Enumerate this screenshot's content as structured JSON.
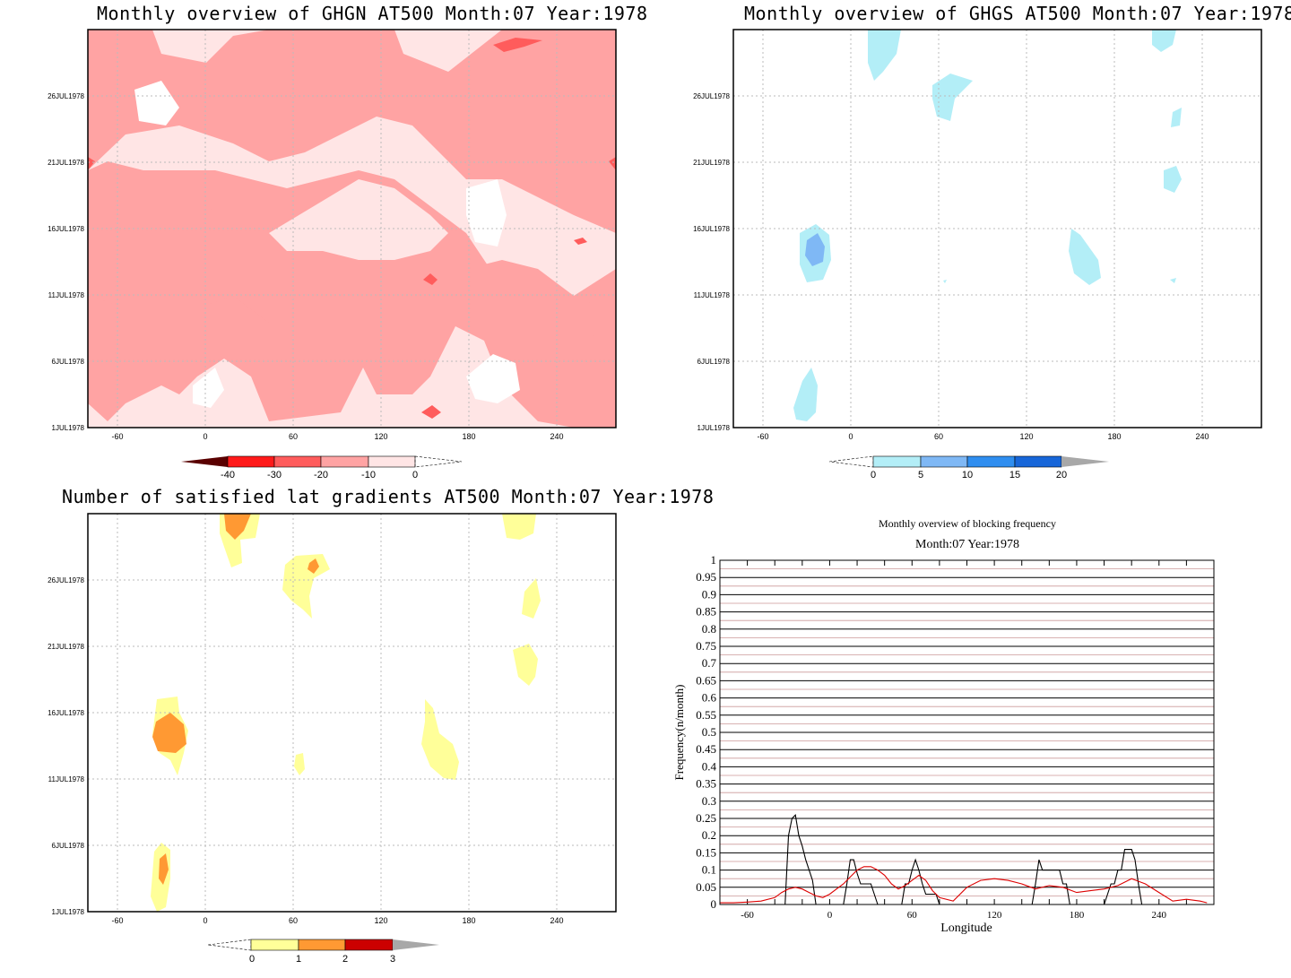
{
  "panels": {
    "ghgn": {
      "title": "Monthly overview of GHGN AT500 Month:07 Year:1978",
      "colorbar_labels": [
        "-40",
        "-30",
        "-20",
        "-10",
        "0"
      ],
      "colorbar_colors": [
        "#5a0000",
        "#ff1a1a",
        "#ff5c5c",
        "#ffa3a3",
        "#ffe5e5"
      ]
    },
    "ghgs": {
      "title": "Monthly overview of GHGS AT500 Month:07 Year:1978",
      "colorbar_labels": [
        "0",
        "5",
        "10",
        "15",
        "20"
      ],
      "colorbar_colors": [
        "#b3eef7",
        "#7fb8f5",
        "#2f8ef0",
        "#1766d9"
      ]
    },
    "lat": {
      "title": "Number of satisfied lat gradients AT500 Month:07 Year:1978",
      "colorbar_labels": [
        "0",
        "1",
        "2",
        "3"
      ],
      "colorbar_colors": [
        "#ffff99",
        "#ff9933",
        "#cc0000"
      ]
    },
    "freq": {
      "title": "Monthly overview of blocking frequency",
      "subtitle": "Month:07 Year:1978"
    }
  },
  "map_axes": {
    "x_ticks": [
      "-60",
      "0",
      "60",
      "120",
      "180",
      "240"
    ],
    "y_ticks": [
      "1JUL1978",
      "6JUL1978",
      "11JUL1978",
      "16JUL1978",
      "21JUL1978",
      "26JUL1978"
    ]
  },
  "chart_data": [
    {
      "type": "heatmap",
      "title": "Monthly overview of GHGN AT500 Month:07 Year:1978",
      "x_range": [
        -80,
        280
      ],
      "x_ticks": [
        -60,
        0,
        60,
        120,
        180,
        240
      ],
      "y_ticks": [
        "1JUL1978",
        "6JUL1978",
        "11JUL1978",
        "16JUL1978",
        "21JUL1978",
        "26JUL1978"
      ],
      "color_levels": [
        -40,
        -30,
        -20,
        -10,
        0
      ],
      "colors": [
        "#5a0000",
        "#ff1a1a",
        "#ff5c5c",
        "#ffa3a3",
        "#ffe5e5"
      ]
    },
    {
      "type": "heatmap",
      "title": "Monthly overview of GHGS AT500 Month:07 Year:1978",
      "x_range": [
        -80,
        280
      ],
      "x_ticks": [
        -60,
        0,
        60,
        120,
        180,
        240
      ],
      "y_ticks": [
        "1JUL1978",
        "6JUL1978",
        "11JUL1978",
        "16JUL1978",
        "21JUL1978",
        "26JUL1978"
      ],
      "color_levels": [
        0,
        5,
        10,
        15,
        20
      ],
      "colors": [
        "#b3eef7",
        "#7fb8f5",
        "#2f8ef0",
        "#1766d9"
      ]
    },
    {
      "type": "heatmap",
      "title": "Number of satisfied lat gradients AT500 Month:07 Year:1978",
      "x_range": [
        -80,
        280
      ],
      "x_ticks": [
        -60,
        0,
        60,
        120,
        180,
        240
      ],
      "y_ticks": [
        "1JUL1978",
        "6JUL1978",
        "11JUL1978",
        "16JUL1978",
        "21JUL1978",
        "26JUL1978"
      ],
      "color_levels": [
        0,
        1,
        2,
        3
      ],
      "colors": [
        "#ffff99",
        "#ff9933",
        "#cc0000"
      ]
    },
    {
      "type": "line",
      "title": "Monthly overview of blocking frequency",
      "subtitle": "Month:07 Year:1978",
      "xlabel": "Longitude",
      "ylabel": "Frequency(n/month)",
      "xlim": [
        -80,
        280
      ],
      "ylim": [
        0,
        1
      ],
      "x_ticks": [
        -60,
        0,
        60,
        120,
        180,
        240
      ],
      "y_ticks": [
        "0",
        "0.05",
        "0.1",
        "0.15",
        "0.2",
        "0.25",
        "0.3",
        "0.35",
        "0.4",
        "0.45",
        "0.5",
        "0.55",
        "0.6",
        "0.65",
        "0.7",
        "0.75",
        "0.8",
        "0.85",
        "0.9",
        "0.95",
        "1"
      ],
      "series": [
        {
          "color": "#000000",
          "x": [
            -32.5,
            -30,
            -27.5,
            -25,
            -22.5,
            -20,
            -17.5,
            -15,
            -12.5,
            -10,
            10,
            12.5,
            15,
            17.5,
            20,
            22.5,
            25,
            27.5,
            30,
            32.5,
            35,
            37.5,
            40,
            52.5,
            55,
            57.5,
            60,
            62.5,
            65,
            67.5,
            70,
            72.5,
            75,
            77.5,
            80,
            82.5,
            147.5,
            150,
            152.5,
            155,
            157.5,
            160,
            162.5,
            165,
            167.5,
            170,
            172.5,
            175,
            177.5,
            180,
            182.5,
            185,
            187.5,
            190,
            192.5,
            195,
            197.5,
            200,
            202.5,
            205,
            207.5,
            210,
            212.5,
            215,
            217.5,
            220,
            222.5,
            225,
            227.5,
            230,
            232.5,
            235,
            237.5
          ],
          "y": [
            0,
            0.2,
            0.25,
            0.26,
            0.2,
            0.17,
            0.13,
            0.1,
            0.07,
            0,
            0,
            0.06,
            0.13,
            0.13,
            0.09,
            0.06,
            0.06,
            0.06,
            0.06,
            0.03,
            0,
            0,
            0,
            0,
            0.06,
            0.06,
            0.1,
            0.13,
            0.1,
            0.06,
            0.03,
            0.03,
            0.03,
            0.03,
            0,
            0,
            0,
            0.06,
            0.13,
            0.1,
            0.1,
            0.1,
            0.1,
            0.1,
            0.1,
            0.06,
            0.06,
            0,
            0,
            0,
            0,
            0,
            0,
            0,
            0,
            0,
            0,
            0,
            0.03,
            0.06,
            0.06,
            0.1,
            0.1,
            0.16,
            0.16,
            0.16,
            0.13,
            0.06,
            0,
            0,
            0,
            0,
            0
          ]
        },
        {
          "color": "#dd0000",
          "x": [
            -80,
            -70,
            -60,
            -50,
            -40,
            -35,
            -30,
            -25,
            -20,
            -15,
            -10,
            -5,
            0,
            5,
            10,
            15,
            20,
            25,
            30,
            35,
            40,
            45,
            50,
            55,
            60,
            65,
            70,
            75,
            80,
            90,
            100,
            110,
            120,
            130,
            140,
            150,
            160,
            170,
            180,
            190,
            200,
            210,
            220,
            230,
            240,
            250,
            260,
            270,
            275
          ],
          "y": [
            0.005,
            0.005,
            0.007,
            0.01,
            0.02,
            0.035,
            0.045,
            0.05,
            0.045,
            0.035,
            0.025,
            0.02,
            0.03,
            0.045,
            0.06,
            0.08,
            0.1,
            0.11,
            0.11,
            0.1,
            0.085,
            0.06,
            0.045,
            0.055,
            0.07,
            0.085,
            0.07,
            0.04,
            0.02,
            0.01,
            0.05,
            0.07,
            0.075,
            0.07,
            0.06,
            0.045,
            0.055,
            0.05,
            0.035,
            0.04,
            0.045,
            0.055,
            0.075,
            0.06,
            0.035,
            0.01,
            0.015,
            0.01,
            0.005
          ]
        }
      ]
    }
  ]
}
